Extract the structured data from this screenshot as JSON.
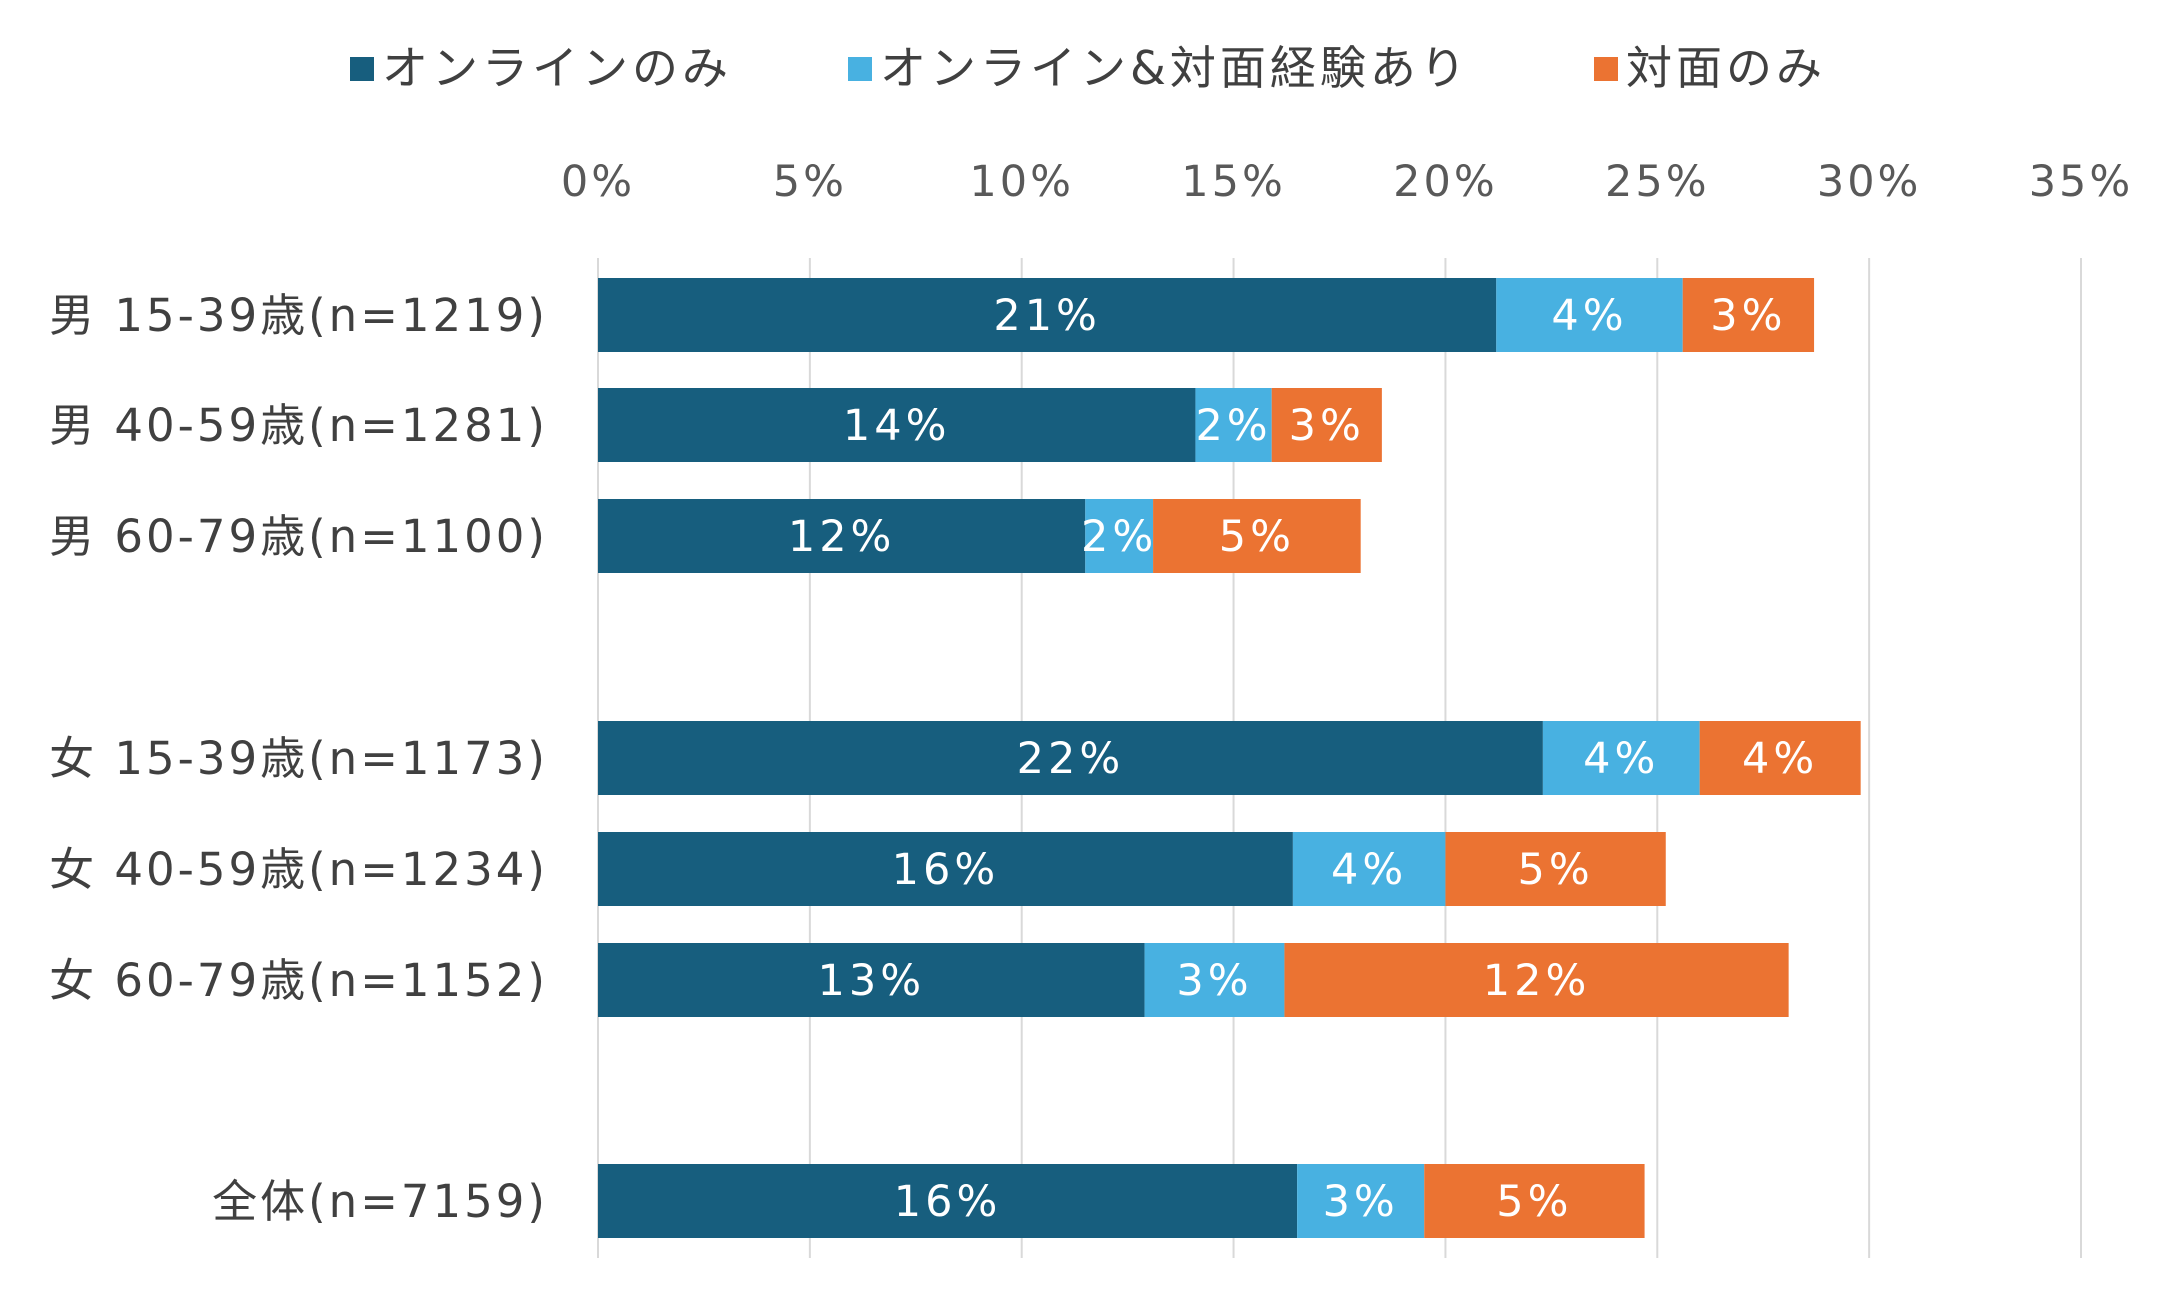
{
  "chart_data": {
    "type": "bar",
    "orientation": "horizontal",
    "stacked": true,
    "title": "",
    "xlabel": "",
    "ylabel": "",
    "xlim": [
      0,
      35
    ],
    "x_ticks": [
      "0%",
      "5%",
      "10%",
      "15%",
      "20%",
      "25%",
      "30%",
      "35%"
    ],
    "grid": true,
    "legend_position": "top",
    "categories": [
      "男 15-39歳(n=1219)",
      "男 40-59歳(n=1281)",
      "男 60-79歳(n=1100)",
      "女 15-39歳(n=1173)",
      "女 40-59歳(n=1234)",
      "女 60-79歳(n=1152)",
      "全体(n=7159)"
    ],
    "series": [
      {
        "name": "オンラインのみ",
        "color": "#175e7e",
        "values": [
          21.2,
          14.1,
          11.5,
          22.3,
          16.4,
          12.9,
          16.5
        ],
        "labels": [
          "21%",
          "14%",
          "12%",
          "22%",
          "16%",
          "13%",
          "16%"
        ]
      },
      {
        "name": "オンライン&対面経験あり",
        "color": "#48b1e1",
        "values": [
          4.4,
          1.8,
          1.6,
          3.7,
          3.6,
          3.3,
          3.0
        ],
        "labels": [
          "4%",
          "2%",
          "2%",
          "4%",
          "4%",
          "3%",
          "3%"
        ]
      },
      {
        "name": "対面のみ",
        "color": "#eb7332",
        "values": [
          3.1,
          2.6,
          4.9,
          3.8,
          5.2,
          11.9,
          5.2
        ],
        "labels": [
          "3%",
          "3%",
          "5%",
          "4%",
          "5%",
          "12%",
          "5%"
        ]
      }
    ]
  }
}
